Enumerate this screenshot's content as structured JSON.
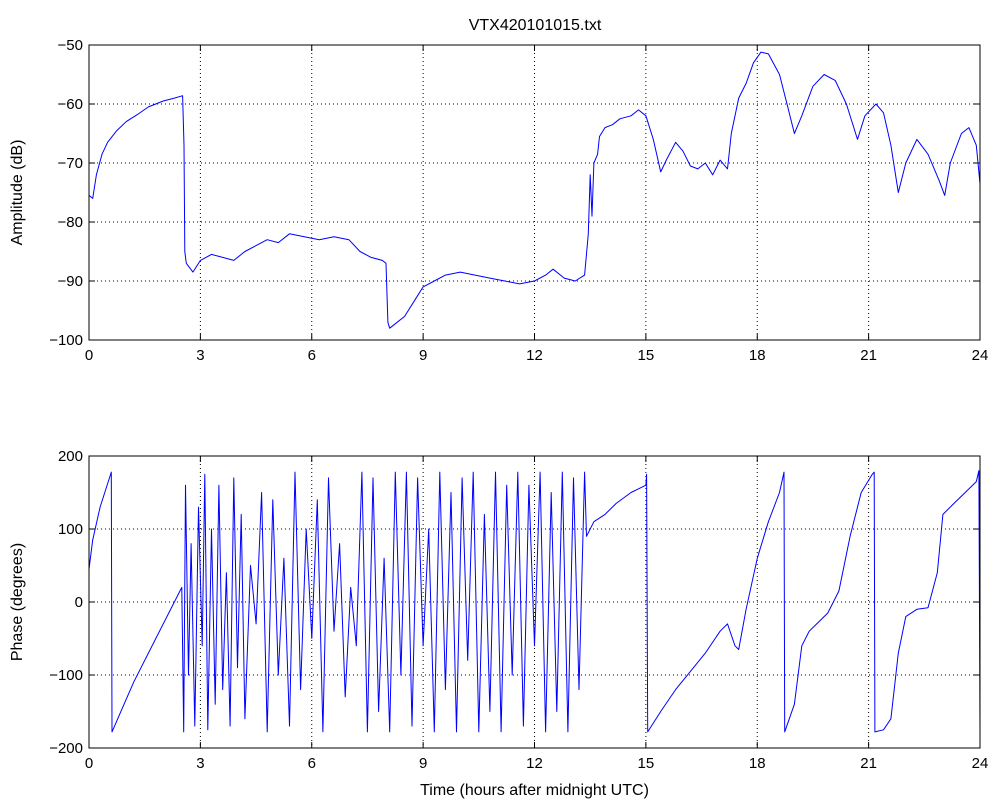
{
  "figure": {
    "title": "VTX420101015.txt"
  },
  "chart_data": [
    {
      "type": "line",
      "title": "VTX420101015.txt",
      "xlabel": "",
      "ylabel": "Amplitude (dB)",
      "xlim": [
        0,
        24
      ],
      "ylim": [
        -100,
        -50
      ],
      "xticks": [
        "0",
        "3",
        "6",
        "9",
        "12",
        "15",
        "18",
        "21",
        "24"
      ],
      "yticks": [
        "−50",
        "−60",
        "−70",
        "−80",
        "−90",
        "−100"
      ],
      "grid": true,
      "line_color": "#0000ff",
      "series": [
        {
          "values": [
            [
              0.0,
              -75.5
            ],
            [
              0.1,
              -76.0
            ],
            [
              0.2,
              -72.0
            ],
            [
              0.35,
              -68.5
            ],
            [
              0.5,
              -66.5
            ],
            [
              0.75,
              -64.5
            ],
            [
              1.0,
              -63.0
            ],
            [
              1.3,
              -61.8
            ],
            [
              1.6,
              -60.5
            ],
            [
              2.0,
              -59.5
            ],
            [
              2.3,
              -59.0
            ],
            [
              2.52,
              -58.6
            ],
            [
              2.56,
              -67.0
            ],
            [
              2.58,
              -85.0
            ],
            [
              2.62,
              -87.0
            ],
            [
              2.8,
              -88.5
            ],
            [
              3.0,
              -86.5
            ],
            [
              3.3,
              -85.5
            ],
            [
              3.6,
              -86.0
            ],
            [
              3.9,
              -86.5
            ],
            [
              4.2,
              -85.0
            ],
            [
              4.5,
              -84.0
            ],
            [
              4.8,
              -83.0
            ],
            [
              5.1,
              -83.5
            ],
            [
              5.4,
              -82.0
            ],
            [
              5.8,
              -82.5
            ],
            [
              6.2,
              -83.0
            ],
            [
              6.6,
              -82.5
            ],
            [
              7.0,
              -83.0
            ],
            [
              7.3,
              -85.0
            ],
            [
              7.6,
              -86.0
            ],
            [
              7.9,
              -86.5
            ],
            [
              8.0,
              -87.0
            ],
            [
              8.05,
              -97.0
            ],
            [
              8.1,
              -98.0
            ],
            [
              8.3,
              -97.0
            ],
            [
              8.5,
              -96.0
            ],
            [
              8.8,
              -93.0
            ],
            [
              9.0,
              -91.0
            ],
            [
              9.3,
              -90.0
            ],
            [
              9.6,
              -89.0
            ],
            [
              10.0,
              -88.5
            ],
            [
              10.4,
              -89.0
            ],
            [
              10.8,
              -89.5
            ],
            [
              11.2,
              -90.0
            ],
            [
              11.6,
              -90.5
            ],
            [
              12.0,
              -90.0
            ],
            [
              12.3,
              -89.0
            ],
            [
              12.5,
              -88.0
            ],
            [
              12.8,
              -89.5
            ],
            [
              13.1,
              -90.0
            ],
            [
              13.35,
              -89.0
            ],
            [
              13.45,
              -82.0
            ],
            [
              13.5,
              -72.0
            ],
            [
              13.55,
              -79.0
            ],
            [
              13.6,
              -70.0
            ],
            [
              13.7,
              -68.5
            ],
            [
              13.75,
              -65.5
            ],
            [
              13.9,
              -64.0
            ],
            [
              14.1,
              -63.5
            ],
            [
              14.3,
              -62.5
            ],
            [
              14.6,
              -62.0
            ],
            [
              14.8,
              -61.0
            ],
            [
              15.0,
              -62.0
            ],
            [
              15.2,
              -66.0
            ],
            [
              15.4,
              -71.5
            ],
            [
              15.55,
              -69.5
            ],
            [
              15.8,
              -66.5
            ],
            [
              16.0,
              -68.0
            ],
            [
              16.2,
              -70.5
            ],
            [
              16.4,
              -71.0
            ],
            [
              16.6,
              -70.0
            ],
            [
              16.8,
              -72.0
            ],
            [
              17.0,
              -69.5
            ],
            [
              17.2,
              -71.0
            ],
            [
              17.3,
              -65.0
            ],
            [
              17.5,
              -59.0
            ],
            [
              17.7,
              -56.5
            ],
            [
              17.9,
              -53.0
            ],
            [
              18.1,
              -51.2
            ],
            [
              18.3,
              -51.5
            ],
            [
              18.6,
              -55.0
            ],
            [
              18.8,
              -60.0
            ],
            [
              19.0,
              -65.0
            ],
            [
              19.2,
              -62.0
            ],
            [
              19.5,
              -57.0
            ],
            [
              19.8,
              -55.0
            ],
            [
              20.1,
              -56.0
            ],
            [
              20.4,
              -60.0
            ],
            [
              20.7,
              -66.0
            ],
            [
              20.9,
              -62.0
            ],
            [
              21.2,
              -60.0
            ],
            [
              21.4,
              -61.5
            ],
            [
              21.6,
              -67.0
            ],
            [
              21.8,
              -75.0
            ],
            [
              22.0,
              -70.0
            ],
            [
              22.3,
              -66.0
            ],
            [
              22.6,
              -68.5
            ],
            [
              22.9,
              -73.0
            ],
            [
              23.05,
              -75.5
            ],
            [
              23.2,
              -70.0
            ],
            [
              23.5,
              -65.0
            ],
            [
              23.7,
              -64.0
            ],
            [
              23.9,
              -67.0
            ],
            [
              24.0,
              -73.5
            ]
          ]
        }
      ]
    },
    {
      "type": "line",
      "title": "",
      "xlabel": "Time (hours after midnight UTC)",
      "ylabel": "Phase (degrees)",
      "xlim": [
        0,
        24
      ],
      "ylim": [
        -200,
        200
      ],
      "xticks": [
        "0",
        "3",
        "6",
        "9",
        "12",
        "15",
        "18",
        "21",
        "24"
      ],
      "yticks": [
        "200",
        "100",
        "0",
        "−100",
        "−200"
      ],
      "grid": true,
      "line_color": "#0000ff",
      "series": [
        {
          "values": [
            [
              0.0,
              45
            ],
            [
              0.1,
              85
            ],
            [
              0.3,
              130
            ],
            [
              0.6,
              178
            ],
            [
              0.62,
              -178
            ],
            [
              1.2,
              -110
            ],
            [
              1.8,
              -50
            ],
            [
              2.5,
              20
            ],
            [
              2.55,
              -178
            ],
            [
              2.6,
              160
            ],
            [
              2.68,
              -100
            ],
            [
              2.75,
              80
            ],
            [
              2.85,
              -170
            ],
            [
              2.95,
              130
            ],
            [
              3.05,
              -60
            ],
            [
              3.12,
              175
            ],
            [
              3.2,
              -175
            ],
            [
              3.3,
              100
            ],
            [
              3.4,
              -140
            ],
            [
              3.5,
              160
            ],
            [
              3.6,
              -120
            ],
            [
              3.7,
              40
            ],
            [
              3.8,
              -170
            ],
            [
              3.9,
              170
            ],
            [
              4.0,
              -90
            ],
            [
              4.1,
              120
            ],
            [
              4.2,
              -160
            ],
            [
              4.35,
              50
            ],
            [
              4.5,
              -30
            ],
            [
              4.65,
              150
            ],
            [
              4.8,
              -178
            ],
            [
              4.95,
              140
            ],
            [
              5.1,
              -100
            ],
            [
              5.25,
              60
            ],
            [
              5.4,
              -170
            ],
            [
              5.55,
              178
            ],
            [
              5.7,
              -120
            ],
            [
              5.85,
              100
            ],
            [
              6.0,
              -50
            ],
            [
              6.15,
              140
            ],
            [
              6.3,
              -178
            ],
            [
              6.45,
              170
            ],
            [
              6.6,
              -40
            ],
            [
              6.75,
              80
            ],
            [
              6.9,
              -130
            ],
            [
              7.05,
              20
            ],
            [
              7.2,
              -60
            ],
            [
              7.35,
              178
            ],
            [
              7.5,
              -178
            ],
            [
              7.65,
              170
            ],
            [
              7.8,
              -150
            ],
            [
              7.95,
              60
            ],
            [
              8.1,
              -178
            ],
            [
              8.25,
              178
            ],
            [
              8.4,
              -100
            ],
            [
              8.55,
              178
            ],
            [
              8.7,
              -170
            ],
            [
              8.85,
              170
            ],
            [
              9.0,
              -60
            ],
            [
              9.15,
              100
            ],
            [
              9.3,
              -178
            ],
            [
              9.45,
              178
            ],
            [
              9.6,
              -120
            ],
            [
              9.75,
              150
            ],
            [
              9.9,
              -178
            ],
            [
              10.05,
              170
            ],
            [
              10.2,
              -80
            ],
            [
              10.35,
              178
            ],
            [
              10.5,
              -178
            ],
            [
              10.65,
              120
            ],
            [
              10.8,
              -150
            ],
            [
              10.95,
              178
            ],
            [
              11.1,
              -178
            ],
            [
              11.25,
              160
            ],
            [
              11.4,
              -100
            ],
            [
              11.55,
              178
            ],
            [
              11.7,
              -170
            ],
            [
              11.85,
              160
            ],
            [
              12.0,
              -60
            ],
            [
              12.15,
              178
            ],
            [
              12.3,
              -178
            ],
            [
              12.45,
              150
            ],
            [
              12.6,
              -150
            ],
            [
              12.75,
              178
            ],
            [
              12.9,
              -178
            ],
            [
              13.05,
              170
            ],
            [
              13.2,
              -120
            ],
            [
              13.35,
              178
            ],
            [
              13.4,
              90
            ],
            [
              13.6,
              110
            ],
            [
              13.9,
              120
            ],
            [
              14.2,
              135
            ],
            [
              14.6,
              150
            ],
            [
              15.0,
              160
            ],
            [
              15.02,
              175
            ],
            [
              15.05,
              -178
            ],
            [
              15.4,
              -150
            ],
            [
              15.8,
              -120
            ],
            [
              16.2,
              -95
            ],
            [
              16.6,
              -70
            ],
            [
              17.0,
              -40
            ],
            [
              17.2,
              -30
            ],
            [
              17.4,
              -60
            ],
            [
              17.5,
              -65
            ],
            [
              17.7,
              -10
            ],
            [
              18.0,
              60
            ],
            [
              18.3,
              110
            ],
            [
              18.6,
              150
            ],
            [
              18.72,
              178
            ],
            [
              18.74,
              -178
            ],
            [
              19.0,
              -140
            ],
            [
              19.2,
              -60
            ],
            [
              19.4,
              -40
            ],
            [
              19.6,
              -30
            ],
            [
              19.9,
              -15
            ],
            [
              20.2,
              15
            ],
            [
              20.5,
              90
            ],
            [
              20.8,
              150
            ],
            [
              21.1,
              175
            ],
            [
              21.15,
              178
            ],
            [
              21.17,
              -178
            ],
            [
              21.4,
              -175
            ],
            [
              21.6,
              -160
            ],
            [
              21.8,
              -70
            ],
            [
              22.0,
              -20
            ],
            [
              22.3,
              -10
            ],
            [
              22.6,
              -8
            ],
            [
              22.85,
              40
            ],
            [
              23.0,
              120
            ],
            [
              23.3,
              135
            ],
            [
              23.6,
              150
            ],
            [
              23.9,
              165
            ],
            [
              23.97,
              180
            ],
            [
              24.0,
              -178
            ]
          ]
        }
      ]
    }
  ]
}
